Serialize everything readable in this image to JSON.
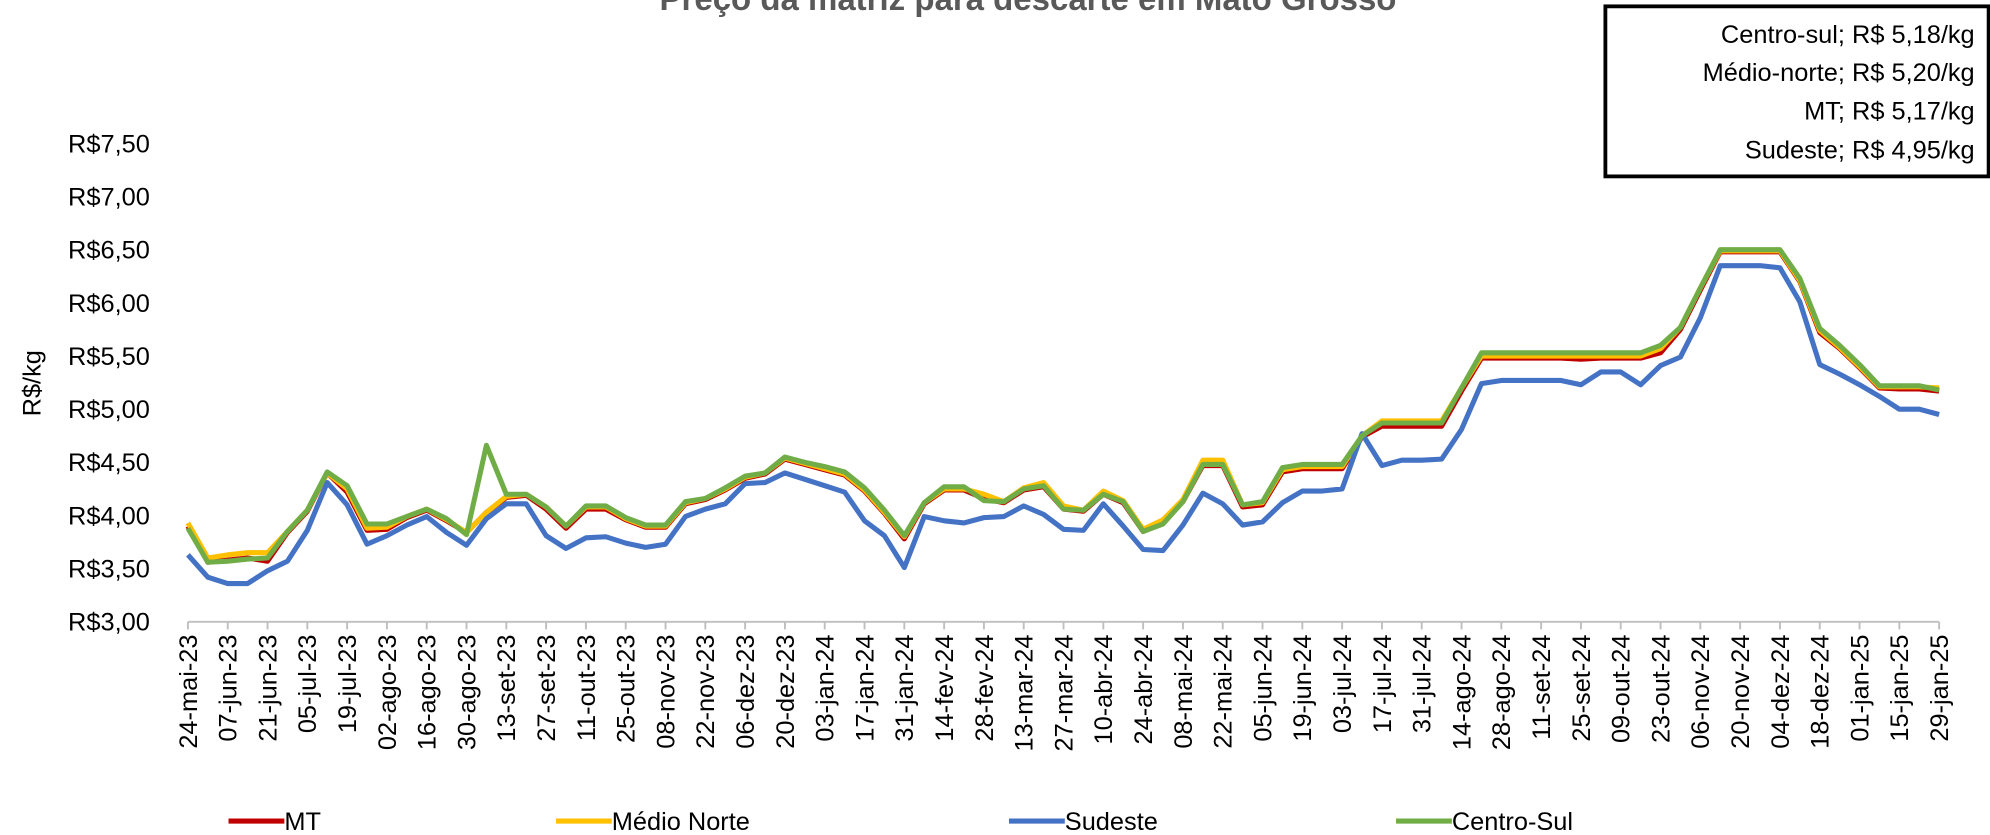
{
  "chart_data": {
    "type": "line",
    "title": "Preço da matriz para descarte em Mato Grosso",
    "y_label": "R$/kg",
    "annotations": [
      "Centro-sul; R$ 5,18/kg",
      "Médio-norte; R$ 5,20/kg",
      "MT; R$ 5,17/kg",
      "Sudeste; R$ 4,95/kg"
    ],
    "categories": [
      "24-mai-23",
      null,
      "07-jun-23",
      null,
      "21-jun-23",
      null,
      "05-jul-23",
      null,
      "19-jul-23",
      null,
      "02-ago-23",
      null,
      "16-ago-23",
      null,
      "30-ago-23",
      null,
      "13-set-23",
      null,
      "27-set-23",
      null,
      "11-out-23",
      null,
      "25-out-23",
      null,
      "08-nov-23",
      null,
      "22-nov-23",
      null,
      "06-dez-23",
      null,
      "20-dez-23",
      null,
      "03-jan-24",
      null,
      "17-jan-24",
      null,
      "31-jan-24",
      null,
      "14-fev-24",
      null,
      "28-fev-24",
      null,
      "13-mar-24",
      null,
      "27-mar-24",
      null,
      "10-abr-24",
      null,
      "24-abr-24",
      null,
      "08-mai-24",
      null,
      "22-mai-24",
      null,
      "05-jun-24",
      null,
      "19-jun-24",
      null,
      "03-jul-24",
      null,
      "17-jul-24",
      null,
      "31-jul-24",
      null,
      "14-ago-24",
      null,
      "28-ago-24",
      null,
      "11-set-24",
      null,
      "25-set-24",
      null,
      "09-out-24",
      null,
      "23-out-24",
      null,
      "06-nov-24",
      null,
      "20-nov-24",
      null,
      "04-dez-24",
      null,
      "18-dez-24",
      null,
      "01-jan-25",
      null,
      "15-jan-25",
      null,
      "29-jan-25"
    ],
    "series": [
      {
        "name": "MT",
        "color": "#c00000",
        "values": [
          3.9,
          3.56,
          3.58,
          3.6,
          3.57,
          3.84,
          4.04,
          4.4,
          4.22,
          3.86,
          3.87,
          3.98,
          4.05,
          3.95,
          3.84,
          4.03,
          4.17,
          4.19,
          4.06,
          3.88,
          4.06,
          4.06,
          3.96,
          3.89,
          3.89,
          4.11,
          4.15,
          4.24,
          4.35,
          4.39,
          4.53,
          4.48,
          4.43,
          4.38,
          4.23,
          4.02,
          3.78,
          4.11,
          4.24,
          4.24,
          4.16,
          4.12,
          4.24,
          4.27,
          4.06,
          4.04,
          4.2,
          4.12,
          3.85,
          3.93,
          4.13,
          4.47,
          4.47,
          4.08,
          4.1,
          4.41,
          4.44,
          4.44,
          4.44,
          4.74,
          4.84,
          4.84,
          4.84,
          4.84,
          5.17,
          5.48,
          5.48,
          5.48,
          5.48,
          5.48,
          5.47,
          5.48,
          5.48,
          5.48,
          5.53,
          5.75,
          6.12,
          6.48,
          6.48,
          6.48,
          6.48,
          6.2,
          5.72,
          5.57,
          5.39,
          5.2,
          5.19,
          5.19,
          5.17
        ]
      },
      {
        "name": "Médio Norte",
        "color": "#ffc000",
        "values": [
          3.93,
          3.6,
          3.63,
          3.65,
          3.65,
          3.85,
          4.05,
          4.4,
          4.25,
          3.88,
          3.89,
          3.99,
          4.06,
          3.96,
          3.84,
          4.03,
          4.18,
          4.2,
          4.08,
          3.9,
          4.08,
          4.08,
          3.97,
          3.9,
          3.9,
          4.12,
          4.16,
          4.25,
          4.36,
          4.4,
          4.54,
          4.49,
          4.44,
          4.39,
          4.24,
          4.03,
          3.8,
          4.12,
          4.25,
          4.25,
          4.2,
          4.13,
          4.26,
          4.31,
          4.09,
          4.05,
          4.23,
          4.14,
          3.87,
          3.96,
          4.15,
          4.52,
          4.52,
          4.1,
          4.12,
          4.43,
          4.46,
          4.46,
          4.46,
          4.75,
          4.89,
          4.89,
          4.89,
          4.89,
          5.2,
          5.5,
          5.5,
          5.5,
          5.5,
          5.5,
          5.5,
          5.5,
          5.5,
          5.5,
          5.57,
          5.77,
          6.14,
          6.49,
          6.49,
          6.49,
          6.49,
          6.21,
          5.74,
          5.58,
          5.4,
          5.21,
          5.21,
          5.21,
          5.2
        ]
      },
      {
        "name": "Sudeste",
        "color": "#4472c4",
        "values": [
          3.63,
          3.42,
          3.36,
          3.36,
          3.48,
          3.57,
          3.86,
          4.31,
          4.1,
          3.73,
          3.81,
          3.91,
          3.99,
          3.84,
          3.72,
          3.97,
          4.11,
          4.11,
          3.81,
          3.69,
          3.79,
          3.8,
          3.74,
          3.7,
          3.73,
          3.99,
          4.06,
          4.11,
          4.3,
          4.31,
          4.4,
          4.34,
          4.28,
          4.22,
          3.95,
          3.81,
          3.51,
          3.99,
          3.95,
          3.93,
          3.98,
          3.99,
          4.09,
          4.01,
          3.87,
          3.86,
          4.11,
          3.9,
          3.68,
          3.67,
          3.91,
          4.21,
          4.11,
          3.91,
          3.94,
          4.12,
          4.23,
          4.23,
          4.25,
          4.77,
          4.47,
          4.52,
          4.52,
          4.53,
          4.81,
          5.24,
          5.27,
          5.27,
          5.27,
          5.27,
          5.23,
          5.35,
          5.35,
          5.23,
          5.41,
          5.49,
          5.86,
          6.35,
          6.35,
          6.35,
          6.33,
          6.01,
          5.42,
          5.33,
          5.23,
          5.12,
          5.0,
          5.0,
          4.95
        ]
      },
      {
        "name": "Centro-Sul",
        "color": "#70ad47",
        "values": [
          3.88,
          3.56,
          3.57,
          3.59,
          3.6,
          3.85,
          4.05,
          4.41,
          4.28,
          3.92,
          3.92,
          3.99,
          4.06,
          3.97,
          3.82,
          4.66,
          4.2,
          4.2,
          4.08,
          3.9,
          4.09,
          4.09,
          3.98,
          3.91,
          3.91,
          4.13,
          4.16,
          4.26,
          4.37,
          4.4,
          4.55,
          4.5,
          4.46,
          4.41,
          4.26,
          4.05,
          3.81,
          4.12,
          4.27,
          4.27,
          4.14,
          4.13,
          4.25,
          4.28,
          4.06,
          4.05,
          4.2,
          4.13,
          3.85,
          3.92,
          4.13,
          4.48,
          4.48,
          4.1,
          4.13,
          4.45,
          4.48,
          4.48,
          4.48,
          4.75,
          4.87,
          4.87,
          4.87,
          4.87,
          5.2,
          5.53,
          5.53,
          5.53,
          5.53,
          5.53,
          5.53,
          5.53,
          5.53,
          5.53,
          5.6,
          5.77,
          6.14,
          6.5,
          6.5,
          6.5,
          6.5,
          6.23,
          5.76,
          5.6,
          5.42,
          5.22,
          5.22,
          5.22,
          5.18
        ]
      }
    ],
    "ylim": [
      3.0,
      7.5
    ],
    "yticks": [
      {
        "value": 3.0,
        "label": "R$3,00"
      },
      {
        "value": 3.5,
        "label": "R$3,50"
      },
      {
        "value": 4.0,
        "label": "R$4,00"
      },
      {
        "value": 4.5,
        "label": "R$4,50"
      },
      {
        "value": 5.0,
        "label": "R$5,00"
      },
      {
        "value": 5.5,
        "label": "R$5,50"
      },
      {
        "value": 6.0,
        "label": "R$6,00"
      },
      {
        "value": 6.5,
        "label": "R$6,50"
      },
      {
        "value": 7.0,
        "label": "R$7,00"
      },
      {
        "value": 7.5,
        "label": "R$7,50"
      }
    ],
    "grid": false,
    "legend": "bottom"
  }
}
